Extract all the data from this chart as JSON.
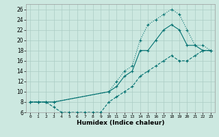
{
  "xlabel": "Humidex (Indice chaleur)",
  "bg_color": "#cce8e0",
  "grid_color": "#aaccc4",
  "line_color": "#007070",
  "xlim": [
    -0.5,
    23.5
  ],
  "ylim": [
    6,
    27
  ],
  "xticks": [
    0,
    1,
    2,
    3,
    4,
    5,
    6,
    7,
    8,
    9,
    10,
    11,
    12,
    13,
    14,
    15,
    16,
    17,
    18,
    19,
    20,
    21,
    22,
    23
  ],
  "yticks": [
    6,
    8,
    10,
    12,
    14,
    16,
    18,
    20,
    22,
    24,
    26
  ],
  "curve_bottom_x": [
    0,
    1,
    2,
    3,
    4,
    5,
    6,
    7,
    8,
    9,
    10,
    11,
    12,
    13,
    14,
    15,
    16,
    17,
    18,
    19,
    20,
    21,
    22,
    23
  ],
  "curve_bottom_y": [
    8,
    8,
    8,
    7,
    6,
    6,
    6,
    6,
    6,
    6,
    8,
    9,
    10,
    11,
    13,
    14,
    15,
    16,
    17,
    16,
    16,
    17,
    18,
    18
  ],
  "curve_mid_x": [
    0,
    1,
    2,
    3,
    10,
    11,
    12,
    13,
    14,
    15,
    16,
    17,
    18,
    19,
    20,
    21,
    22,
    23
  ],
  "curve_mid_y": [
    8,
    8,
    8,
    8,
    10,
    11,
    13,
    14,
    18,
    18,
    20,
    22,
    23,
    22,
    19,
    19,
    18,
    18
  ],
  "curve_top_x": [
    0,
    1,
    2,
    3,
    10,
    11,
    12,
    13,
    14,
    15,
    16,
    17,
    18,
    19,
    20,
    21,
    22,
    23
  ],
  "curve_top_y": [
    8,
    8,
    8,
    8,
    10,
    12,
    14,
    15,
    20,
    23,
    24,
    25,
    26,
    25,
    22,
    19,
    19,
    18
  ]
}
